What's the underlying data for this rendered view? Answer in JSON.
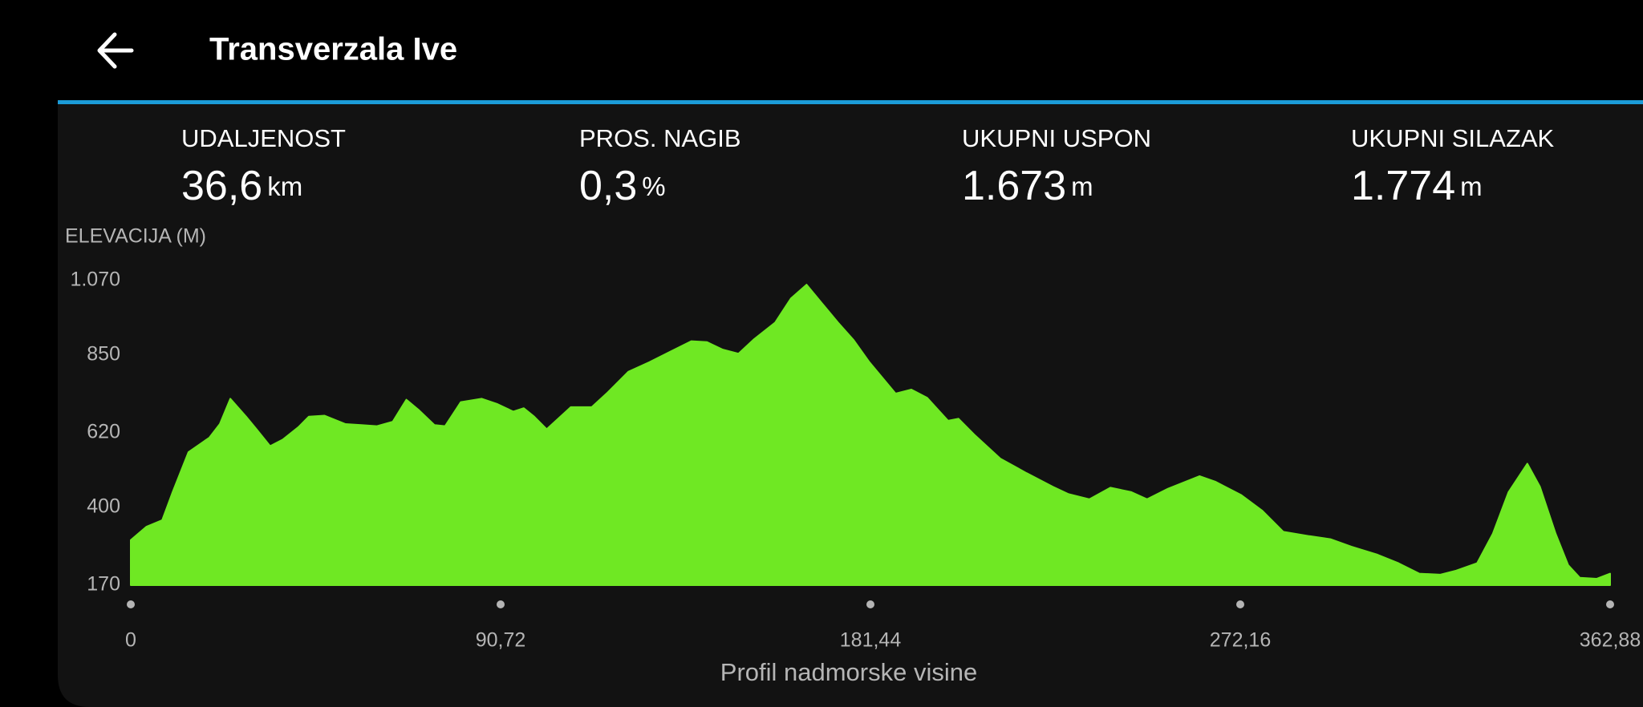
{
  "header": {
    "title": "Transverzala Ive"
  },
  "stats": [
    {
      "label": "UDALJENOST",
      "value": "36,6",
      "unit": "km"
    },
    {
      "label": "PROS. NAGIB",
      "value": "0,3",
      "unit": "%"
    },
    {
      "label": "UKUPNI USPON",
      "value": "1.673",
      "unit": "m"
    },
    {
      "label": "UKUPNI SILAZAK",
      "value": "1.774",
      "unit": "m"
    }
  ],
  "chart_data": {
    "type": "area",
    "ylabel": "ELEVACIJA (M)",
    "xlabel": "Profil nadmorske visine",
    "color": "#6fe823",
    "grid": false,
    "x": [
      0,
      3.86,
      7.71,
      10.28,
      14.14,
      19.28,
      21.85,
      24.42,
      28.27,
      30.84,
      34.18,
      37.27,
      41.12,
      43.69,
      47.55,
      52.69,
      56.54,
      60.4,
      64.25,
      67.59,
      70.68,
      74.53,
      77.1,
      80.96,
      86.1,
      89.95,
      93.81,
      96.38,
      98.95,
      102.03,
      107.94,
      113.08,
      116.94,
      122.08,
      127.22,
      132.36,
      137.5,
      141.35,
      145.21,
      149.06,
      152.92,
      158.06,
      161.91,
      165.77,
      169.62,
      173.48,
      177.33,
      181.19,
      187.61,
      191.47,
      195.32,
      200.46,
      203.03,
      206.89,
      213.31,
      219.74,
      226.16,
      230.02,
      235.16,
      240.3,
      245.44,
      249.29,
      254.43,
      262.14,
      266,
      272.42,
      277.56,
      282.7,
      289.13,
      294.27,
      299.41,
      305.83,
      310.97,
      316.11,
      321.25,
      325.11,
      330.25,
      334.1,
      337.96,
      342.58,
      345.67,
      349.52,
      352.61,
      355.44,
      359.55,
      362.88
    ],
    "values": [
      303,
      343,
      362,
      445,
      563,
      606,
      646,
      721,
      668,
      631,
      581,
      600,
      637,
      668,
      671,
      646,
      643,
      640,
      653,
      718,
      687,
      643,
      640,
      711,
      721,
      705,
      683,
      693,
      668,
      631,
      696,
      696,
      739,
      801,
      829,
      860,
      891,
      888,
      866,
      854,
      897,
      946,
      1017,
      1058,
      1002,
      946,
      894,
      829,
      736,
      748,
      724,
      656,
      662,
      615,
      544,
      501,
      461,
      439,
      424,
      458,
      445,
      424,
      455,
      492,
      476,
      436,
      390,
      328,
      315,
      306,
      284,
      260,
      235,
      204,
      201,
      213,
      235,
      322,
      445,
      529,
      461,
      322,
      229,
      192,
      189,
      204
    ],
    "xlim": [
      0,
      362.88
    ],
    "xticks": [
      0,
      {
        "value": 90.72,
        "label": "90,72"
      },
      {
        "value": 181.44,
        "label": "181,44"
      },
      {
        "value": 272.16,
        "label": "272,16"
      },
      {
        "value": 362.88,
        "label": "362,88"
      }
    ],
    "ylim": [
      170,
      1070
    ],
    "yticks": [
      170,
      400,
      620,
      850,
      {
        "value": 1070,
        "label": "1.070"
      }
    ]
  }
}
